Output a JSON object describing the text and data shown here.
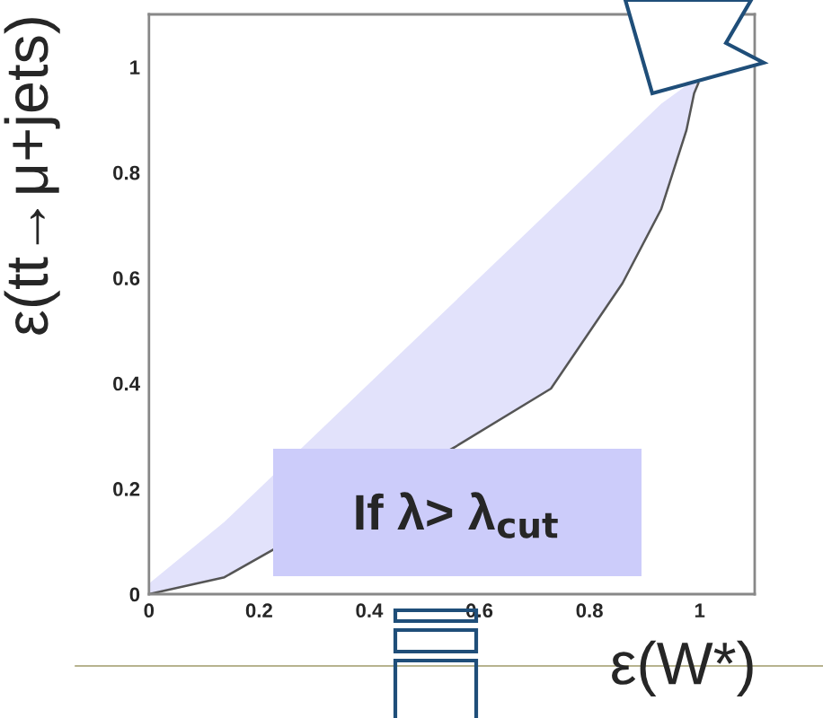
{
  "chart_data": {
    "type": "line",
    "xlabel": "ε(W*)",
    "ylabel": "ε(tt→μ+jets)",
    "x": [
      0,
      0.137,
      0.557,
      0.73,
      0.86,
      0.93,
      0.976,
      0.99,
      0.998
    ],
    "series": [
      {
        "color": "#555555",
        "values": [
          0,
          0.032,
          0.28,
          0.39,
          0.59,
          0.73,
          0.88,
          0.95,
          0.97
        ],
        "lower": [
          0,
          0.032,
          0.28,
          0.39,
          0.59,
          0.73,
          0.88,
          0.95,
          0.97
        ],
        "upper": [
          0.02,
          0.137,
          0.557,
          0.73,
          0.86,
          0.93,
          0.965,
          0.97,
          0.97
        ]
      }
    ],
    "xlim": [
      0,
      1.1
    ],
    "ylim": [
      0,
      1.1
    ],
    "xticks": [
      0,
      0.2,
      0.4,
      0.6,
      0.8,
      1
    ],
    "yticks": [
      0,
      0.2,
      0.4,
      0.6,
      0.8,
      1
    ],
    "grid": false,
    "marker": "none",
    "line_style": "solid",
    "annotations": [
      "If λ> λ$_{cut}$"
    ]
  }
}
